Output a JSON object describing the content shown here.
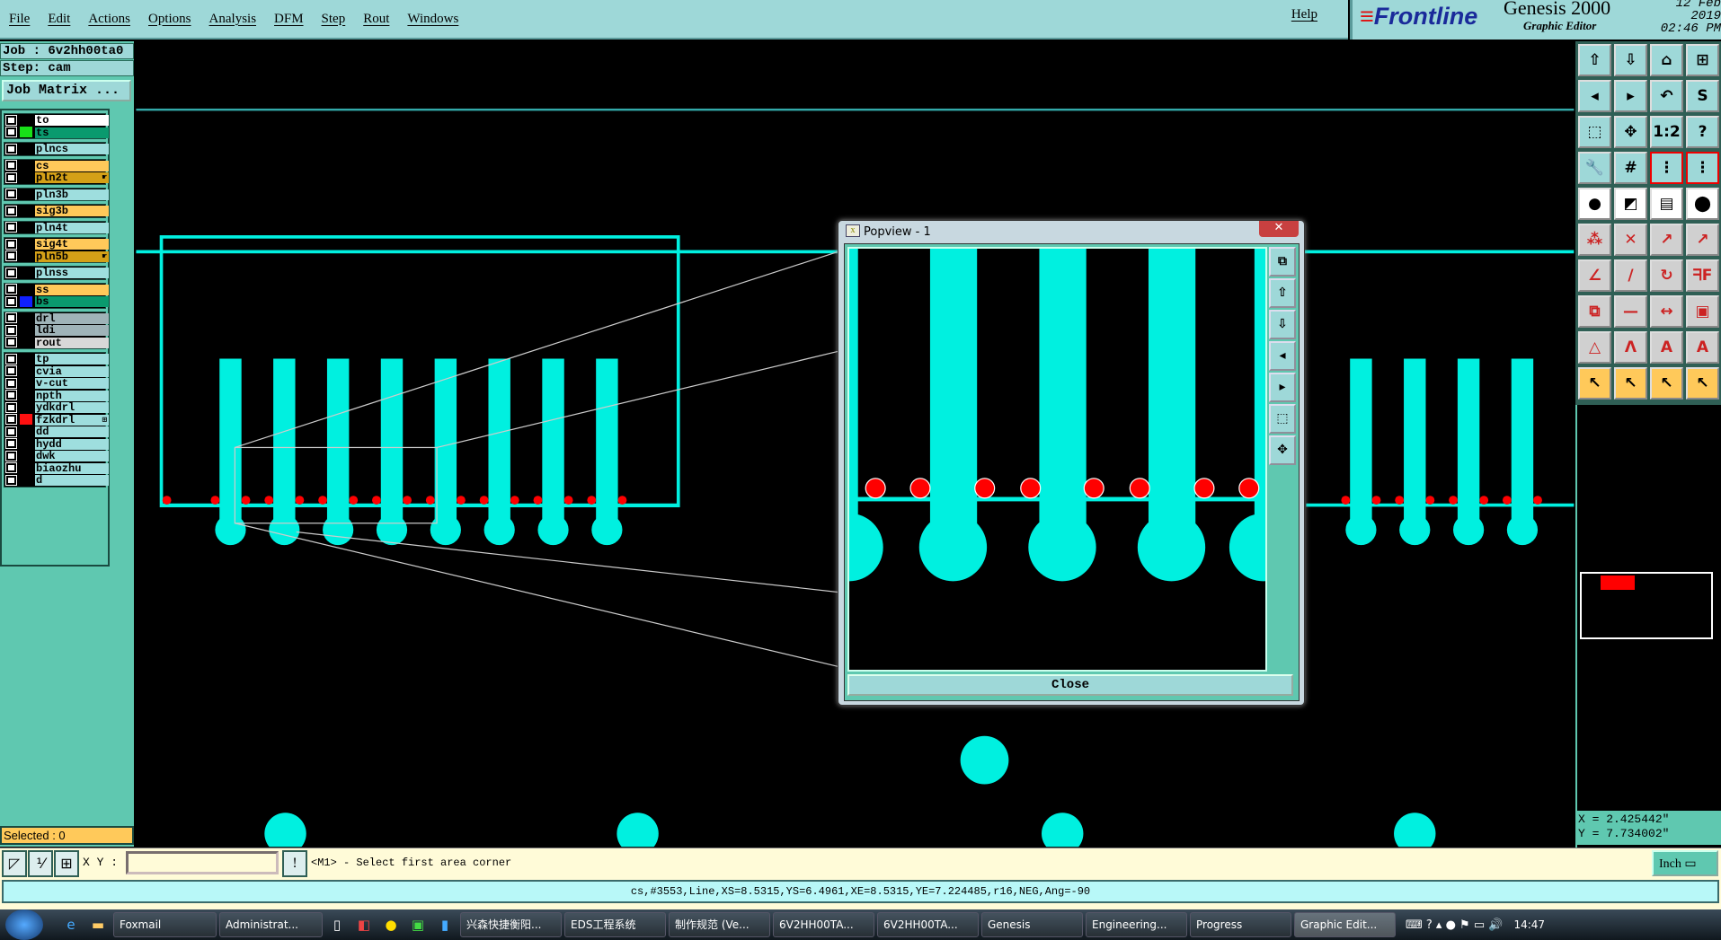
{
  "menu": {
    "items": [
      "File",
      "Edit",
      "Actions",
      "Options",
      "Analysis",
      "DFM",
      "Step",
      "Rout",
      "Windows"
    ],
    "help": "Help"
  },
  "logo": {
    "brand": "Frontline",
    "product": "Genesis 2000",
    "subtitle": "Graphic Editor",
    "date": "12 Feb 2019",
    "time": "02:46 PM"
  },
  "job": {
    "job_line": "Job : 6v2hh00ta0",
    "step_line": "Step: cam",
    "matrix_button": "Job Matrix ..."
  },
  "layers": [
    {
      "name": "to",
      "bg": "#ffffff",
      "swatch": ""
    },
    {
      "name": "ts",
      "bg": "#0a9a6e",
      "swatch": "#18e018"
    },
    {
      "name": "plncs",
      "bg": "#9edede",
      "swatch": ""
    },
    {
      "name": "cs",
      "bg": "#ffc95a",
      "swatch": ""
    },
    {
      "name": "pln2t",
      "bg": "#d4a017",
      "swatch": "",
      "mark": "☛"
    },
    {
      "name": "pln3b",
      "bg": "#9edede",
      "swatch": ""
    },
    {
      "name": "sig3b",
      "bg": "#ffc95a",
      "swatch": ""
    },
    {
      "name": "pln4t",
      "bg": "#9edede",
      "swatch": ""
    },
    {
      "name": "sig4t",
      "bg": "#ffc95a",
      "swatch": ""
    },
    {
      "name": "pln5b",
      "bg": "#d4a017",
      "swatch": "",
      "mark": "☛"
    },
    {
      "name": "plnss",
      "bg": "#9edede",
      "swatch": ""
    },
    {
      "name": "ss",
      "bg": "#ffc95a",
      "swatch": ""
    },
    {
      "name": "bs",
      "bg": "#0a9a6e",
      "swatch": "#1020ff"
    },
    {
      "name": "drl",
      "bg": "#9fb3b8",
      "swatch": ""
    },
    {
      "name": "ldi",
      "bg": "#9fb3b8",
      "swatch": ""
    },
    {
      "name": "rout",
      "bg": "#d8d8d8",
      "swatch": ""
    },
    {
      "name": "tp",
      "bg": "#9edede",
      "swatch": ""
    },
    {
      "name": "cvia",
      "bg": "#9edede",
      "swatch": ""
    },
    {
      "name": "v-cut",
      "bg": "#9edede",
      "swatch": ""
    },
    {
      "name": "npth",
      "bg": "#9edede",
      "swatch": ""
    },
    {
      "name": "ydkdrl",
      "bg": "#9edede",
      "swatch": ""
    },
    {
      "name": "fzkdrl",
      "bg": "#9edede",
      "swatch": "#ff1010",
      "mark": "⊞"
    },
    {
      "name": "dd",
      "bg": "#9edede",
      "swatch": ""
    },
    {
      "name": "hydd",
      "bg": "#9edede",
      "swatch": ""
    },
    {
      "name": "dwk",
      "bg": "#9edede",
      "swatch": ""
    },
    {
      "name": "biaozhu",
      "bg": "#9edede",
      "swatch": ""
    },
    {
      "name": "d",
      "bg": "#9edede",
      "swatch": ""
    }
  ],
  "layer_groups": [
    2,
    1,
    2,
    1,
    1,
    1,
    2,
    1,
    2,
    3,
    11
  ],
  "selected": "Selected : 0",
  "toolbar": [
    {
      "icon": "open-step-icon",
      "g": "⇧"
    },
    {
      "icon": "save-step-icon",
      "g": "⇩"
    },
    {
      "icon": "home-icon",
      "g": "⌂"
    },
    {
      "icon": "grid-window-icon",
      "g": "⊞"
    },
    {
      "icon": "pan-left-icon",
      "g": "◂"
    },
    {
      "icon": "pan-right-icon",
      "g": "▸"
    },
    {
      "icon": "undo-view-icon",
      "g": "↶"
    },
    {
      "icon": "snap-path-icon",
      "g": "S"
    },
    {
      "icon": "zoom-fit-icon",
      "g": "⬚"
    },
    {
      "icon": "zoom-center-icon",
      "g": "✥"
    },
    {
      "icon": "scale-1-2-icon",
      "g": "1:2"
    },
    {
      "icon": "help-icon",
      "g": "?"
    },
    {
      "icon": "tools-icon",
      "g": "🔧"
    },
    {
      "icon": "grid-icon",
      "g": "#"
    },
    {
      "icon": "netlist-icon",
      "g": "⋮"
    },
    {
      "icon": "netlist-compare-icon",
      "g": "⋮"
    },
    {
      "icon": "select-pad-icon",
      "g": "●"
    },
    {
      "icon": "measure-box-icon",
      "g": "◩"
    },
    {
      "icon": "ruler-icon",
      "g": "▤"
    },
    {
      "icon": "pad-select-icon",
      "g": "⬤"
    },
    {
      "icon": "connect-icon",
      "g": "⁂"
    },
    {
      "icon": "cross-icon",
      "g": "✕"
    },
    {
      "icon": "move-point-icon",
      "g": "↗"
    },
    {
      "icon": "move-filled-icon",
      "g": "↗"
    },
    {
      "icon": "line-angle-icon",
      "g": "∠"
    },
    {
      "icon": "line-slope-icon",
      "g": "/"
    },
    {
      "icon": "rotate-icon",
      "g": "↻"
    },
    {
      "icon": "mirror-icon",
      "g": "ᖷF"
    },
    {
      "icon": "move-copy-icon",
      "g": "⧉"
    },
    {
      "icon": "line-icon",
      "g": "—"
    },
    {
      "icon": "dimension-icon",
      "g": "↔"
    },
    {
      "icon": "shapes-icon",
      "g": "▣"
    },
    {
      "icon": "triangle-icon",
      "g": "△"
    },
    {
      "icon": "arc-a-icon",
      "g": "Λ"
    },
    {
      "icon": "arc-b-icon",
      "g": "A"
    },
    {
      "icon": "arc-c-icon",
      "g": "A"
    },
    {
      "icon": "pointer-icon",
      "g": "↖"
    },
    {
      "icon": "pointer-box-icon",
      "g": "↖"
    },
    {
      "icon": "pointer-poly-icon",
      "g": "↖"
    },
    {
      "icon": "route-pointer-icon",
      "g": "↖"
    }
  ],
  "coords": {
    "x": "X = 2.425442\"",
    "y": "Y = 7.734002\""
  },
  "command": {
    "xy_label": "X Y :",
    "xy_value": "",
    "prompt": "<M1> - Select first area corner",
    "units": "Inch"
  },
  "status": "cs,#3553,Line,XS=8.5315,YS=6.4961,XE=8.5315,YE=7.224485,r16,NEG,Ang=-90",
  "popup": {
    "title": "Popview - 1",
    "close_label": "Close",
    "x_label": "x"
  },
  "colors": {
    "copper": "#00f0e0",
    "highlight": "#ff0000",
    "panel": "#5fc8b0",
    "menu": "#9ed8d8"
  },
  "taskbar": {
    "items": [
      "Foxmail",
      "Administrat...",
      "兴森快捷衡阳...",
      "EDS工程系统",
      "制作规范 (Ve...",
      "6V2HH00TA...",
      "6V2HH00TA...",
      "Genesis",
      "Engineering...",
      "Progress",
      "Graphic Edit..."
    ],
    "clock": "14:47"
  }
}
